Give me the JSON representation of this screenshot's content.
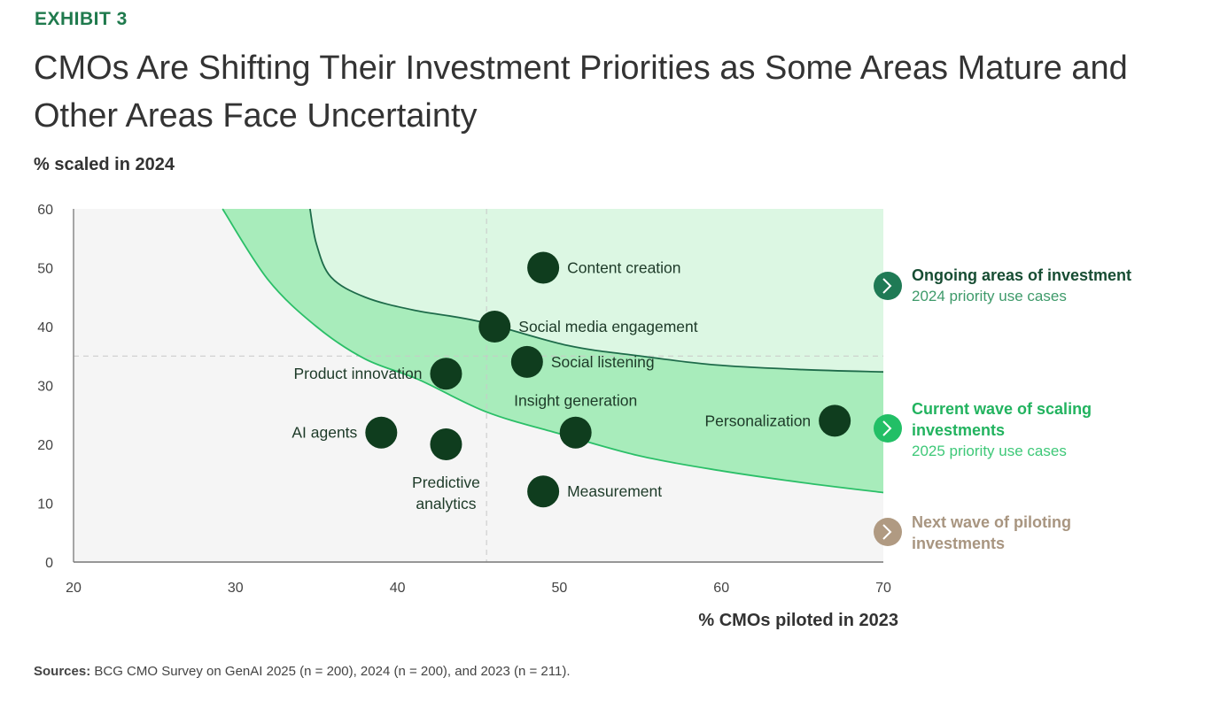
{
  "exhibit": "EXHIBIT 3",
  "title": "CMOs Are Shifting Their Investment Priorities as Some Areas Mature and Other Areas Face Uncertainty",
  "source": {
    "label": "Sources:",
    "text": "BCG CMO Survey on GenAI 2025 (n = 200), 2024 (n = 200), and 2023 (n = 211)."
  },
  "chart_data": {
    "type": "scatter",
    "ylabel": "% scaled in 2024",
    "xlabel": "% CMOs piloted in 2023",
    "xlim": [
      20,
      70
    ],
    "ylim": [
      0,
      60
    ],
    "xticks": [
      "20",
      "30",
      "40",
      "50",
      "60",
      "70"
    ],
    "yticks": [
      "0",
      "10",
      "20",
      "30",
      "40",
      "50",
      "60"
    ],
    "grid": false,
    "reference_lines": {
      "x": 45.5,
      "y": 35
    },
    "points": [
      {
        "label": "Content creation",
        "x": 49,
        "y": 50
      },
      {
        "label": "Social media engagement",
        "x": 46,
        "y": 40
      },
      {
        "label": "Social listening",
        "x": 48,
        "y": 34
      },
      {
        "label": "Product innovation",
        "x": 43,
        "y": 32
      },
      {
        "label": "AI agents",
        "x": 39,
        "y": 22
      },
      {
        "label": "Predictive analytics",
        "x": 43,
        "y": 20
      },
      {
        "label": "Insight generation",
        "x": 51,
        "y": 22
      },
      {
        "label": "Measurement",
        "x": 49,
        "y": 12
      },
      {
        "label": "Personalization",
        "x": 67,
        "y": 24
      }
    ],
    "regions": {
      "upper_boundary": [
        [
          34.6,
          60
        ],
        [
          35,
          54
        ],
        [
          35.9,
          48.4
        ],
        [
          38,
          45
        ],
        [
          41,
          42.8
        ],
        [
          45,
          40.9
        ],
        [
          50.5,
          36.8
        ],
        [
          55,
          35
        ],
        [
          59.6,
          33.5
        ],
        [
          65,
          32.7
        ],
        [
          70,
          32.3
        ]
      ],
      "lower_boundary": [
        [
          29.2,
          60
        ],
        [
          32,
          48
        ],
        [
          35,
          40
        ],
        [
          38,
          34.5
        ],
        [
          41.3,
          31
        ],
        [
          45.5,
          25.5
        ],
        [
          50,
          21.8
        ],
        [
          55,
          18
        ],
        [
          60,
          15.5
        ],
        [
          65,
          13.5
        ],
        [
          70,
          11.8
        ]
      ]
    },
    "colors": {
      "point": "#0f3d1e",
      "plot_bg": "#f5f5f5",
      "upper_region": "#dcf7e3",
      "band": "#a8ecbb",
      "upper_line": "#1e6b4a",
      "lower_line": "#2bbf68"
    },
    "legend": {
      "placement": "right",
      "items": [
        {
          "title": "Ongoing areas of investment",
          "subtitle": "2024 priority use cases",
          "color": "#1f7a55",
          "title_color": "#174d33",
          "subtitle_color": "#3e9a6a"
        },
        {
          "title": "Current wave of scaling investments",
          "subtitle": "2025 priority use cases",
          "color": "#22bf66",
          "title_color": "#22b35f",
          "subtitle_color": "#3ec878"
        },
        {
          "title": "Next wave of piloting investments",
          "subtitle": "",
          "color": "#b09a82",
          "title_color": "#a89580",
          "subtitle_color": ""
        }
      ]
    }
  }
}
